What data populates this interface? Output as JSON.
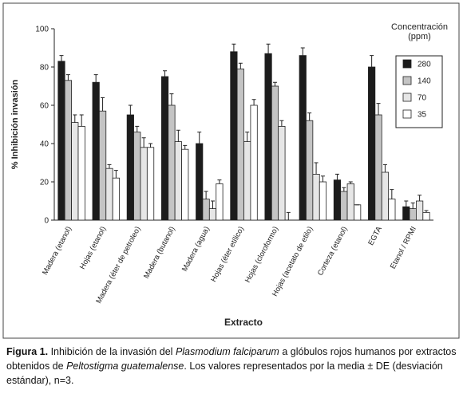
{
  "chart_data": {
    "type": "bar",
    "y_label": "% Inhibición invasión",
    "x_label": "Extracto",
    "legend_title": "Concentración (ppm)",
    "categories": [
      "Madera (etanol)",
      "Hojas (etanol)",
      "Madera (éter de petroleo)",
      "Madera (butanol)",
      "Madera (agua)",
      "Hojas (éter etílico)",
      "Hojas (cloroformo)",
      "Hojas (acetato de etilo)",
      "Corteza (etanol)",
      "EGTA",
      "Etanol / RPMI"
    ],
    "series": [
      {
        "name": "280",
        "color": "#1c1c1c",
        "values": [
          83,
          72,
          55,
          75,
          40,
          88,
          87,
          86,
          21,
          80,
          7
        ],
        "errors": [
          3,
          4,
          5,
          3,
          6,
          4,
          5,
          4,
          3,
          6,
          3
        ]
      },
      {
        "name": "140",
        "color": "#c4c4c4",
        "values": [
          73,
          57,
          46,
          60,
          11,
          79,
          70,
          52,
          15,
          55,
          6
        ],
        "errors": [
          3,
          7,
          3,
          6,
          4,
          3,
          2,
          4,
          2,
          6,
          3
        ]
      },
      {
        "name": "70",
        "color": "#e6e6e6",
        "values": [
          51,
          27,
          38,
          41,
          6,
          41,
          49,
          24,
          19,
          25,
          10
        ],
        "errors": [
          4,
          2,
          5,
          6,
          4,
          5,
          3,
          6,
          1,
          4,
          3
        ]
      },
      {
        "name": "35",
        "color": "#ffffff",
        "values": [
          49,
          22,
          38,
          37,
          19,
          60,
          0,
          20,
          8,
          11,
          4
        ],
        "errors": [
          6,
          4,
          2,
          2,
          2,
          3,
          4,
          3,
          0,
          5,
          1
        ]
      }
    ],
    "ylim": [
      0,
      100
    ],
    "yticks": [
      0,
      20,
      40,
      60,
      80,
      100
    ],
    "legend": "right"
  },
  "caption": {
    "label": "Figura 1.",
    "segments": [
      "Inhibición de la invasión del ",
      "Plasmodium falciparum",
      " a glóbulos rojos humanos por extractos obtenidos de ",
      "Peltostigma guatemalense",
      ". Los valores representados por la media ± DE (desviación estándar), n=3."
    ]
  }
}
